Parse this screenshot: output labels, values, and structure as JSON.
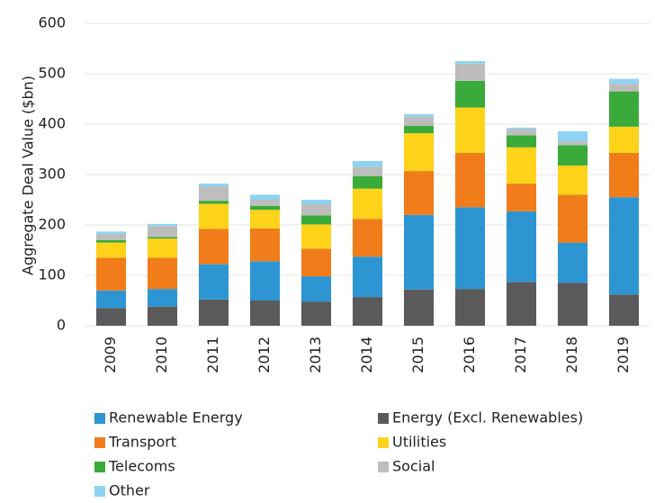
{
  "chart_data": {
    "type": "bar",
    "stacked": true,
    "y_label": "Aggregate Deal Value ($bn)",
    "categories": [
      "2009",
      "2010",
      "2011",
      "2012",
      "2013",
      "2014",
      "2015",
      "2016",
      "2017",
      "2018",
      "2019"
    ],
    "series": [
      {
        "name": "Renewable Energy",
        "color": "#2e95d3",
        "values": [
          35,
          35,
          70,
          78,
          50,
          80,
          148,
          162,
          140,
          80,
          193
        ]
      },
      {
        "name": "Energy (Excl. Renewables)",
        "color": "#5a5a5a",
        "values": [
          35,
          38,
          52,
          50,
          48,
          57,
          72,
          73,
          87,
          85,
          62
        ]
      },
      {
        "name": "Transport",
        "color": "#f07c1a",
        "values": [
          65,
          62,
          70,
          65,
          55,
          75,
          87,
          108,
          55,
          95,
          88
        ]
      },
      {
        "name": "Utilities",
        "color": "#ffd31a",
        "values": [
          30,
          38,
          50,
          37,
          48,
          60,
          75,
          90,
          72,
          58,
          52
        ]
      },
      {
        "name": "Telecoms",
        "color": "#3aaa3a",
        "values": [
          5,
          3,
          6,
          8,
          18,
          25,
          15,
          53,
          24,
          40,
          70
        ]
      },
      {
        "name": "Social",
        "color": "#bdbdbd",
        "values": [
          12,
          22,
          28,
          12,
          22,
          18,
          18,
          34,
          12,
          8,
          15
        ]
      },
      {
        "name": "Other",
        "color": "#8fd3f2",
        "values": [
          5,
          4,
          6,
          10,
          9,
          12,
          5,
          5,
          3,
          20,
          10
        ]
      }
    ],
    "ylim": [
      0,
      600
    ],
    "yticks": [
      0,
      100,
      200,
      300,
      400,
      500,
      600
    ],
    "grid": true
  }
}
